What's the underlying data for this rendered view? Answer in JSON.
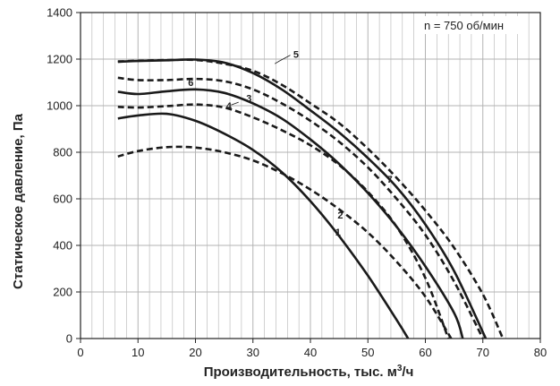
{
  "chart_data": {
    "type": "line",
    "title": "",
    "xlabel": "Производительность, тыс. м",
    "xlabel_sup": "3",
    "xlabel_suffix": "/ч",
    "ylabel": "Статическое давление, Па",
    "xlim": [
      0,
      80
    ],
    "ylim": [
      0,
      1400
    ],
    "x_major_ticks": [
      "0",
      "10",
      "20",
      "30",
      "40",
      "50",
      "60",
      "70",
      "80"
    ],
    "y_major_ticks": [
      "0",
      "200",
      "400",
      "600",
      "800",
      "1000",
      "1200",
      "1400"
    ],
    "grid": "on",
    "legend": "none",
    "annotation": "n = 750 об/мин",
    "colors": {
      "line": "#1a1a1a",
      "grid": "#b3b3b3",
      "axis": "#222222"
    },
    "series": [
      {
        "name": "1",
        "style": "solid",
        "x": [
          6.5,
          10,
          15,
          20,
          25,
          30,
          35,
          40,
          45,
          50,
          55,
          57
        ],
        "y": [
          945,
          958,
          965,
          935,
          880,
          810,
          715,
          590,
          440,
          270,
          80,
          0
        ]
      },
      {
        "name": "2",
        "style": "dashed",
        "x": [
          6.5,
          10,
          15,
          20,
          25,
          30,
          35,
          40,
          45,
          50,
          55,
          60,
          64.5
        ],
        "y": [
          782,
          805,
          822,
          820,
          800,
          765,
          710,
          640,
          555,
          455,
          330,
          180,
          0
        ]
      },
      {
        "name": "3",
        "style": "solid",
        "x": [
          6.5,
          10,
          15,
          20,
          25,
          30,
          35,
          40,
          45,
          50,
          55,
          60,
          65,
          66.5
        ],
        "y": [
          1060,
          1050,
          1062,
          1070,
          1055,
          1010,
          945,
          855,
          750,
          625,
          480,
          310,
          110,
          0
        ]
      },
      {
        "name": "4",
        "style": "dashed",
        "x": [
          6.5,
          10,
          15,
          20,
          25,
          30,
          35,
          40,
          45,
          50,
          55,
          60,
          64
        ],
        "y": [
          995,
          992,
          998,
          1005,
          992,
          950,
          895,
          830,
          745,
          630,
          480,
          260,
          0
        ]
      },
      {
        "name": "5",
        "style": "dashed",
        "x": [
          6.5,
          10,
          15,
          20,
          25,
          30,
          35,
          40,
          45,
          50,
          55,
          60,
          65,
          70,
          73.5
        ],
        "y": [
          1190,
          1193,
          1196,
          1196,
          1180,
          1150,
          1090,
          1010,
          925,
          815,
          690,
          550,
          390,
          190,
          0
        ]
      },
      {
        "name": "6",
        "style": "dashed",
        "x": [
          6.5,
          10,
          15,
          20,
          25,
          30,
          35,
          40,
          45,
          50,
          55,
          60,
          65,
          70
        ],
        "y": [
          1120,
          1110,
          1110,
          1115,
          1105,
          1070,
          1010,
          935,
          845,
          735,
          600,
          445,
          245,
          0
        ]
      },
      {
        "name": "7",
        "style": "solid",
        "x": [
          6.5,
          10,
          15,
          20,
          25,
          30,
          35,
          40,
          45,
          50,
          55,
          60,
          65,
          70.5
        ],
        "y": [
          1188,
          1192,
          1195,
          1198,
          1185,
          1140,
          1070,
          980,
          885,
          775,
          650,
          490,
          290,
          0
        ]
      }
    ]
  }
}
